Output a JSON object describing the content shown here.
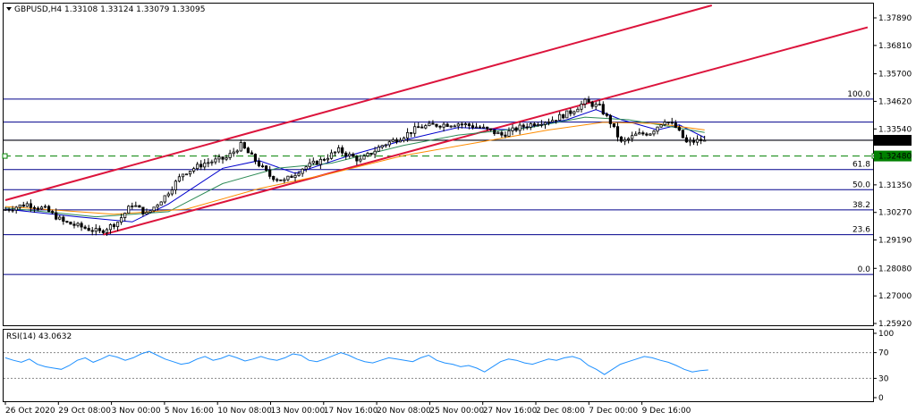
{
  "header": {
    "symbol_line": "GBPUSD,H4  1.33108 1.33124 1.33079 1.33095"
  },
  "rsi_panel": {
    "label": "RSI(14) 43.0632",
    "ticks": [
      "100",
      "70",
      "30",
      "0"
    ]
  },
  "colors": {
    "candle": "#000000",
    "channel": "#dc143c",
    "fib": "#00008b",
    "support_dashed": "#008000",
    "ma_fast": "#0000cd",
    "ma_mid": "#2e8b57",
    "ma_slow": "#ff8c00",
    "rsi_line": "#1e90ff",
    "price_tag_bg": "#000000",
    "support_tag_bg": "#008000"
  },
  "chart_data": [
    {
      "type": "candlestick",
      "title": "GBPUSD,H4",
      "ohlc_last": {
        "open": 1.33108,
        "high": 1.33124,
        "low": 1.33079,
        "close": 1.33095
      },
      "ylim": [
        1.2592,
        1.3838
      ],
      "y_ticks": [
        "1.37890",
        "1.36810",
        "1.35700",
        "1.34620",
        "1.33540",
        "1.32480",
        "1.31350",
        "1.30270",
        "1.29190",
        "1.28080",
        "1.27000",
        "1.25920"
      ],
      "x_ticks": [
        "26 Oct 2020",
        "29 Oct 08:00",
        "3 Nov 00:00",
        "5 Nov 16:00",
        "10 Nov 08:00",
        "13 Nov 00:00",
        "17 Nov 16:00",
        "20 Nov 08:00",
        "25 Nov 00:00",
        "27 Nov 16:00",
        "2 Dec 08:00",
        "7 Dec 00:00",
        "9 Dec 16:00"
      ],
      "current_price_label": "1.33095",
      "support_level": {
        "value": 1.3248,
        "label": "1.32480"
      },
      "fibonacci_levels": [
        {
          "label": "100.0",
          "value": 1.3471
        },
        {
          "label": "",
          "value": 1.3381
        },
        {
          "label": "",
          "value": 1.331
        },
        {
          "label": "61.8",
          "value": 1.3195
        },
        {
          "label": "50.0",
          "value": 1.3116
        },
        {
          "label": "38.2",
          "value": 1.3037
        },
        {
          "label": "23.6",
          "value": 1.294
        },
        {
          "label": "0.0",
          "value": 1.2784
        }
      ],
      "trend_channel": [
        {
          "start": {
            "bar": 0,
            "price": 1.3075
          },
          "end": {
            "bar": 195,
            "price": 1.3838
          }
        },
        {
          "start": {
            "bar": 27,
            "price": 1.294
          },
          "end": {
            "bar": 238,
            "price": 1.3752
          }
        }
      ],
      "price_path": [
        {
          "bar": 0,
          "price": 1.3035
        },
        {
          "bar": 7,
          "price": 1.306
        },
        {
          "bar": 12,
          "price": 1.304
        },
        {
          "bar": 17,
          "price": 1.299
        },
        {
          "bar": 22,
          "price": 1.297
        },
        {
          "bar": 27,
          "price": 1.295
        },
        {
          "bar": 32,
          "price": 1.299
        },
        {
          "bar": 36,
          "price": 1.306
        },
        {
          "bar": 40,
          "price": 1.302
        },
        {
          "bar": 45,
          "price": 1.309
        },
        {
          "bar": 50,
          "price": 1.318
        },
        {
          "bar": 56,
          "price": 1.322
        },
        {
          "bar": 62,
          "price": 1.324
        },
        {
          "bar": 66,
          "price": 1.329
        },
        {
          "bar": 70,
          "price": 1.323
        },
        {
          "bar": 74,
          "price": 1.317
        },
        {
          "bar": 78,
          "price": 1.315
        },
        {
          "bar": 83,
          "price": 1.32
        },
        {
          "bar": 88,
          "price": 1.323
        },
        {
          "bar": 93,
          "price": 1.327
        },
        {
          "bar": 99,
          "price": 1.323
        },
        {
          "bar": 105,
          "price": 1.329
        },
        {
          "bar": 110,
          "price": 1.332
        },
        {
          "bar": 115,
          "price": 1.336
        },
        {
          "bar": 120,
          "price": 1.337
        },
        {
          "bar": 126,
          "price": 1.3375
        },
        {
          "bar": 132,
          "price": 1.336
        },
        {
          "bar": 138,
          "price": 1.333
        },
        {
          "bar": 143,
          "price": 1.336
        },
        {
          "bar": 148,
          "price": 1.338
        },
        {
          "bar": 152,
          "price": 1.339
        },
        {
          "bar": 157,
          "price": 1.342
        },
        {
          "bar": 161,
          "price": 1.346
        },
        {
          "bar": 165,
          "price": 1.344
        },
        {
          "bar": 168,
          "price": 1.338
        },
        {
          "bar": 171,
          "price": 1.33
        },
        {
          "bar": 175,
          "price": 1.333
        },
        {
          "bar": 179,
          "price": 1.334
        },
        {
          "bar": 183,
          "price": 1.339
        },
        {
          "bar": 186,
          "price": 1.336
        },
        {
          "bar": 189,
          "price": 1.33
        },
        {
          "bar": 193,
          "price": 1.331
        }
      ],
      "moving_averages": [
        {
          "color_key": "ma_fast",
          "path": [
            [
              0,
              1.304
            ],
            [
              20,
              1.301
            ],
            [
              35,
              1.299
            ],
            [
              45,
              1.306
            ],
            [
              60,
              1.32
            ],
            [
              70,
              1.323
            ],
            [
              80,
              1.318
            ],
            [
              95,
              1.325
            ],
            [
              110,
              1.331
            ],
            [
              125,
              1.336
            ],
            [
              140,
              1.335
            ],
            [
              155,
              1.339
            ],
            [
              163,
              1.343
            ],
            [
              170,
              1.339
            ],
            [
              180,
              1.335
            ],
            [
              186,
              1.337
            ],
            [
              193,
              1.332
            ]
          ]
        },
        {
          "color_key": "ma_mid",
          "path": [
            [
              0,
              1.3045
            ],
            [
              25,
              1.301
            ],
            [
              45,
              1.303
            ],
            [
              60,
              1.314
            ],
            [
              75,
              1.32
            ],
            [
              90,
              1.322
            ],
            [
              110,
              1.329
            ],
            [
              125,
              1.333
            ],
            [
              145,
              1.336
            ],
            [
              160,
              1.34
            ],
            [
              172,
              1.339
            ],
            [
              185,
              1.336
            ],
            [
              193,
              1.334
            ]
          ]
        },
        {
          "color_key": "ma_slow",
          "path": [
            [
              0,
              1.305
            ],
            [
              30,
              1.302
            ],
            [
              50,
              1.304
            ],
            [
              70,
              1.312
            ],
            [
              90,
              1.318
            ],
            [
              110,
              1.325
            ],
            [
              130,
              1.33
            ],
            [
              150,
              1.335
            ],
            [
              165,
              1.338
            ],
            [
              180,
              1.3375
            ],
            [
              193,
              1.335
            ]
          ]
        }
      ]
    },
    {
      "type": "line",
      "title": "RSI(14) 43.0632",
      "ylim": [
        0,
        100
      ],
      "levels": [
        70,
        30
      ],
      "series": [
        {
          "name": "RSI(14)",
          "values": [
            62,
            58,
            55,
            60,
            52,
            48,
            46,
            44,
            50,
            58,
            62,
            55,
            60,
            66,
            63,
            58,
            62,
            68,
            72,
            66,
            60,
            56,
            52,
            54,
            60,
            64,
            58,
            61,
            66,
            62,
            57,
            60,
            64,
            60,
            58,
            62,
            68,
            66,
            58,
            56,
            60,
            65,
            70,
            66,
            60,
            56,
            54,
            58,
            62,
            60,
            58,
            56,
            62,
            66,
            58,
            54,
            52,
            48,
            50,
            46,
            40,
            48,
            56,
            60,
            58,
            54,
            52,
            56,
            60,
            58,
            62,
            64,
            60,
            50,
            44,
            36,
            44,
            52,
            56,
            60,
            64,
            62,
            58,
            55,
            50,
            44,
            40,
            42,
            43
          ]
        }
      ]
    }
  ]
}
